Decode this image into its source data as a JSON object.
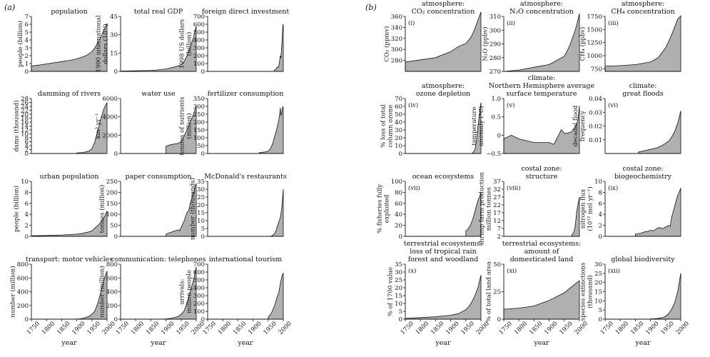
{
  "panel_labels": [
    "(a)",
    "(b)"
  ],
  "colors": {
    "fill": "#b0b0b0",
    "line": "#111111",
    "background": "#ffffff"
  },
  "chart_data": [
    {
      "type": "area",
      "title": [
        "population"
      ],
      "ylabel": [
        "people (billion)"
      ],
      "ylim": [
        0,
        7
      ],
      "yticks": [
        "0",
        "1",
        "2",
        "3",
        "4",
        "5",
        "6",
        "7"
      ],
      "xlim": [
        1750,
        2000
      ],
      "x": [
        1750,
        1775,
        1800,
        1825,
        1850,
        1875,
        1900,
        1915,
        1930,
        1940,
        1950,
        1960,
        1970,
        1980,
        1990,
        2000
      ],
      "y": [
        0.7,
        0.8,
        0.95,
        1.1,
        1.25,
        1.4,
        1.6,
        1.8,
        2.0,
        2.25,
        2.5,
        3.0,
        3.7,
        4.4,
        5.3,
        6.1
      ]
    },
    {
      "type": "area",
      "title": [
        "total real GDP"
      ],
      "ylabel": [
        "1990 international",
        "dollars (10¹²)"
      ],
      "ylim": [
        0,
        45
      ],
      "yticks": [
        "0",
        "15",
        "30",
        "45"
      ],
      "xlim": [
        1750,
        2000
      ],
      "x": [
        1750,
        1800,
        1850,
        1870,
        1900,
        1913,
        1929,
        1950,
        1960,
        1970,
        1980,
        1990,
        2000
      ],
      "y": [
        0.3,
        0.5,
        0.8,
        1.1,
        2.0,
        2.7,
        3.7,
        5.3,
        8,
        13,
        20,
        27,
        37
      ]
    },
    {
      "type": "area",
      "title": [
        "foreign direct investment"
      ],
      "ylabel": [
        "1998 US dollars",
        "(billion)"
      ],
      "ylim": [
        0,
        700
      ],
      "yticks": [
        "0",
        "100",
        "200",
        "300",
        "400",
        "500",
        "600",
        "700"
      ],
      "xlim": [
        1750,
        2000
      ],
      "x": [
        1970,
        1975,
        1980,
        1983,
        1986,
        1990,
        1992,
        1995,
        1997,
        1999,
        2000
      ],
      "y": [
        15,
        25,
        55,
        50,
        80,
        200,
        170,
        330,
        460,
        600,
        580
      ]
    },
    {
      "type": "area",
      "title": [
        "damming of rivers"
      ],
      "ylabel": [
        "dams (thousand)"
      ],
      "ylim": [
        0,
        28
      ],
      "yticks": [
        "0",
        "2",
        "4",
        "6",
        "8",
        "10",
        "12",
        "14",
        "16",
        "18",
        "20",
        "22",
        "24",
        "26",
        "28"
      ],
      "xlim": [
        1750,
        2000
      ],
      "x": [
        1900,
        1920,
        1940,
        1950,
        1960,
        1970,
        1980,
        1990,
        2000
      ],
      "y": [
        0.3,
        0.5,
        1.2,
        2.5,
        6,
        12,
        18,
        23,
        26
      ]
    },
    {
      "type": "area",
      "title": [
        "water use"
      ],
      "ylabel": [
        "km³ yr⁻¹"
      ],
      "ylim": [
        0,
        6000
      ],
      "yticks": [
        "0",
        "2000",
        "4000",
        "6000"
      ],
      "xlim": [
        1750,
        2000
      ],
      "x": [
        1900,
        1920,
        1940,
        1950,
        1960,
        1970,
        1980,
        1990,
        2000
      ],
      "y": [
        800,
        1000,
        1100,
        1300,
        1900,
        2600,
        3400,
        4200,
        5200
      ]
    },
    {
      "type": "area",
      "title": [
        "fertilizer consumption"
      ],
      "ylabel": [
        "tonnes of nutrients",
        "(million)"
      ],
      "ylim": [
        0,
        350
      ],
      "yticks": [
        "0",
        "50",
        "100",
        "150",
        "200",
        "250",
        "300",
        "350"
      ],
      "xlim": [
        1750,
        2000
      ],
      "x": [
        1920,
        1940,
        1950,
        1955,
        1960,
        1965,
        1970,
        1975,
        1980,
        1985,
        1988,
        1990,
        1993,
        1995,
        1998,
        2000
      ],
      "y": [
        5,
        10,
        15,
        25,
        40,
        65,
        100,
        130,
        170,
        210,
        250,
        290,
        240,
        260,
        300,
        290
      ]
    },
    {
      "type": "area",
      "title": [
        "urban population"
      ],
      "ylabel": [
        "people (billion)"
      ],
      "ylim": [
        0,
        10
      ],
      "yticks": [
        "0",
        "2",
        "4",
        "6",
        "8",
        "10"
      ],
      "xlim": [
        1750,
        2000
      ],
      "x": [
        1750,
        1800,
        1850,
        1900,
        1920,
        1940,
        1950,
        1960,
        1970,
        1980,
        1990,
        2000
      ],
      "y": [
        0.1,
        0.15,
        0.25,
        0.4,
        0.55,
        0.8,
        1.0,
        1.5,
        2.0,
        2.6,
        3.4,
        4.6
      ]
    },
    {
      "type": "area",
      "title": [
        "paper consumption"
      ],
      "ylabel": [
        "tonnes (million)"
      ],
      "ylim": [
        0,
        250
      ],
      "yticks": [
        "0",
        "50",
        "100",
        "150",
        "200",
        "250"
      ],
      "xlim": [
        1750,
        2000
      ],
      "x": [
        1900,
        1920,
        1940,
        1945,
        1950,
        1960,
        1970,
        1975,
        1980,
        1985,
        1990,
        1993,
        1995,
        1998,
        2000
      ],
      "y": [
        10,
        20,
        30,
        25,
        40,
        70,
        110,
        115,
        150,
        170,
        200,
        195,
        220,
        235,
        240
      ]
    },
    {
      "type": "area",
      "title": [
        "McDonald's restaurants"
      ],
      "ylabel": [
        "number (thousands)"
      ],
      "ylim": [
        0,
        35
      ],
      "yticks": [
        "0",
        "5",
        "10",
        "15",
        "20",
        "25",
        "30",
        "35"
      ],
      "xlim": [
        1750,
        2000
      ],
      "x": [
        1955,
        1960,
        1965,
        1970,
        1975,
        1980,
        1985,
        1990,
        1995,
        2000
      ],
      "y": [
        0,
        0.2,
        0.7,
        1.5,
        3,
        6,
        9,
        12,
        18,
        30
      ]
    },
    {
      "type": "area",
      "title": [
        "transport: motor vehicles"
      ],
      "ylabel": [
        "number (million)"
      ],
      "ylim": [
        0,
        800
      ],
      "yticks": [
        "0",
        "200",
        "400",
        "600",
        "800"
      ],
      "xlim": [
        1750,
        2000
      ],
      "xticks": [
        "1750",
        "1800",
        "1850",
        "1900",
        "1950",
        "2000"
      ],
      "xlabel": "year",
      "x": [
        1750,
        1850,
        1900,
        1920,
        1940,
        1950,
        1960,
        1970,
        1980,
        1990,
        2000
      ],
      "y": [
        0,
        0,
        1,
        10,
        40,
        70,
        120,
        240,
        400,
        580,
        700
      ]
    },
    {
      "type": "area",
      "title": [
        "communication: telephones"
      ],
      "ylabel": [
        "number (million)"
      ],
      "ylim": [
        0,
        800
      ],
      "yticks": [
        "0",
        "200",
        "400",
        "600",
        "800"
      ],
      "xlim": [
        1750,
        2000
      ],
      "xticks": [
        "1750",
        "1800",
        "1850",
        "1900",
        "1950",
        "2000"
      ],
      "xlabel": "year",
      "x": [
        1880,
        1900,
        1920,
        1940,
        1950,
        1960,
        1970,
        1980,
        1990,
        2000
      ],
      "y": [
        0,
        3,
        15,
        40,
        70,
        120,
        240,
        400,
        550,
        760
      ]
    },
    {
      "type": "area",
      "title": [
        "international tourism"
      ],
      "ylabel": [
        "arrivals:",
        "million people"
      ],
      "ylim": [
        0,
        700
      ],
      "yticks": [
        "0",
        "100",
        "200",
        "300",
        "400",
        "500",
        "600",
        "700"
      ],
      "xlim": [
        1750,
        2000
      ],
      "xticks": [
        "1750",
        "1800",
        "1850",
        "1900",
        "1950",
        "2000"
      ],
      "xlabel": "year",
      "x": [
        1950,
        1960,
        1970,
        1975,
        1980,
        1985,
        1990,
        1995,
        2000
      ],
      "y": [
        25,
        70,
        160,
        220,
        290,
        330,
        450,
        540,
        590
      ]
    },
    {
      "type": "area",
      "title": [
        "atmosphere:",
        "CO₂ concentration"
      ],
      "tag": "(i)",
      "ylabel": [
        "CO₂ (ppmv)"
      ],
      "ylim": [
        260,
        360
      ],
      "yticks": [
        "280",
        "300",
        "320",
        "340",
        "360"
      ],
      "xlim": [
        1750,
        2000
      ],
      "x": [
        1750,
        1800,
        1850,
        1900,
        1925,
        1950,
        1960,
        1970,
        1980,
        1990,
        2000
      ],
      "y": [
        277,
        281,
        285,
        296,
        305,
        311,
        317,
        325,
        338,
        353,
        368
      ]
    },
    {
      "type": "area",
      "title": [
        "atmosphere:",
        "N₂O concentration"
      ],
      "tag": "(ii)",
      "ylabel": [
        "N₂O (ppbv)"
      ],
      "ylim": [
        270,
        310
      ],
      "yticks": [
        "270",
        "280",
        "290",
        "300",
        "310"
      ],
      "xlim": [
        1750,
        2000
      ],
      "x": [
        1750,
        1800,
        1850,
        1900,
        1925,
        1950,
        1960,
        1970,
        1980,
        1990,
        2000
      ],
      "y": [
        270,
        271,
        273,
        275,
        278,
        281,
        285,
        290,
        296,
        303,
        312
      ]
    },
    {
      "type": "area",
      "title": [
        "atmosphere:",
        "CH₄ concentration"
      ],
      "tag": "(iii)",
      "ylabel": [
        "CH₄ (ppbv)"
      ],
      "ylim": [
        700,
        1750
      ],
      "yticks": [
        "750",
        "1000",
        "1250",
        "1500",
        "1750"
      ],
      "xlim": [
        1750,
        2000
      ],
      "x": [
        1750,
        1800,
        1850,
        1900,
        1925,
        1950,
        1960,
        1970,
        1980,
        1990,
        2000
      ],
      "y": [
        800,
        810,
        830,
        880,
        960,
        1150,
        1270,
        1400,
        1550,
        1700,
        1760
      ]
    },
    {
      "type": "area",
      "title": [
        "atmosphere:",
        "ozone depletion"
      ],
      "tag": "(iv)",
      "ylabel": [
        "% loss of total",
        "column ozone"
      ],
      "ylim": [
        0,
        70
      ],
      "yticks": [
        "0",
        "10",
        "20",
        "30",
        "40",
        "50",
        "60",
        "70"
      ],
      "xlim": [
        1750,
        2000
      ],
      "x": [
        1960,
        1970,
        1975,
        1980,
        1985,
        1990,
        1995,
        2000
      ],
      "y": [
        0,
        0,
        2,
        5,
        15,
        35,
        50,
        65
      ]
    },
    {
      "type": "line",
      "title": [
        "climate:",
        "Northern Hemisphere average",
        "surface temperature"
      ],
      "tag": "(v)",
      "ylabel": [
        "temperature",
        "anomaly (°C)"
      ],
      "ylim": [
        -0.5,
        1.0
      ],
      "yticks": [
        "−0.5",
        "0",
        "0.5",
        "1.0"
      ],
      "xlim": [
        1750,
        2000
      ],
      "x": [
        1750,
        1775,
        1800,
        1825,
        1850,
        1875,
        1900,
        1915,
        1925,
        1940,
        1950,
        1960,
        1975,
        1985,
        1990,
        1995,
        2000
      ],
      "y": [
        -0.1,
        0.0,
        -0.1,
        -0.15,
        -0.2,
        -0.2,
        -0.2,
        -0.25,
        -0.1,
        0.15,
        0.05,
        0.05,
        0.1,
        0.2,
        0.3,
        0.4,
        0.8
      ]
    },
    {
      "type": "area",
      "title": [
        "climate:",
        "great floods"
      ],
      "tag": "(vi)",
      "ylabel": [
        "decadal flood",
        "frequency"
      ],
      "ylim": [
        0,
        0.04
      ],
      "yticks": [
        "0.01",
        "0.02",
        "0.03",
        "0.04"
      ],
      "xlim": [
        1750,
        2000
      ],
      "x": [
        1860,
        1900,
        1920,
        1940,
        1960,
        1970,
        1980,
        1990,
        2000
      ],
      "y": [
        0.001,
        0.003,
        0.004,
        0.006,
        0.009,
        0.012,
        0.016,
        0.022,
        0.031
      ]
    },
    {
      "type": "area",
      "title": [
        "ocean ecosystems"
      ],
      "tag": "(vii)",
      "ylabel": [
        "% fisheries fully",
        "exploited"
      ],
      "ylim": [
        0,
        100
      ],
      "yticks": [
        "0",
        "20",
        "40",
        "60",
        "80",
        "100"
      ],
      "xlim": [
        1750,
        2000
      ],
      "x": [
        1950,
        1955,
        1960,
        1965,
        1970,
        1975,
        1980,
        1985,
        1990,
        1995,
        2000
      ],
      "y": [
        10,
        12,
        16,
        20,
        27,
        35,
        45,
        55,
        65,
        72,
        80
      ]
    },
    {
      "type": "area",
      "title": [
        "costal zone:",
        "structure"
      ],
      "tag": "(viii)",
      "ylabel": [
        "shrimp farm production",
        "million tonnes"
      ],
      "ylim": [
        2,
        37
      ],
      "yticks": [
        "2",
        "7",
        "12",
        "17",
        "22",
        "27",
        "32",
        "37"
      ],
      "xlim": [
        1750,
        2000
      ],
      "x": [
        1975,
        1980,
        1985,
        1988,
        1990,
        1993,
        1995,
        1998,
        2000
      ],
      "y": [
        3,
        4,
        7,
        12,
        16,
        20,
        22,
        25,
        27
      ]
    },
    {
      "type": "area",
      "title": [
        "costal zone:",
        "biogeochemistry"
      ],
      "tag": "(ix)",
      "ylabel": [
        "nitrogen flux",
        "(10¹² mol yr⁻¹)"
      ],
      "ylim": [
        0,
        10
      ],
      "yticks": [
        "0",
        "2",
        "4",
        "6",
        "8",
        "10"
      ],
      "xlim": [
        1750,
        2000
      ],
      "x": [
        1850,
        1870,
        1880,
        1890,
        1900,
        1910,
        1920,
        1930,
        1940,
        1950,
        1960,
        1965,
        1970,
        1975,
        1980,
        1985,
        1990,
        1995,
        2000
      ],
      "y": [
        0.4,
        0.6,
        0.8,
        0.9,
        1.1,
        1.0,
        1.4,
        1.6,
        1.4,
        1.7,
        2.0,
        1.8,
        3.5,
        4.5,
        5.5,
        6.5,
        7.5,
        8.0,
        8.8
      ]
    },
    {
      "type": "area",
      "title": [
        "terrestrial ecosystems:",
        "loss of tropical rain",
        "forest and woodland"
      ],
      "tag": "(x)",
      "ylabel": [
        "% of 1700 value"
      ],
      "ylim": [
        0,
        35
      ],
      "yticks": [
        "0",
        "5",
        "10",
        "15",
        "20",
        "25",
        "30",
        "35"
      ],
      "xlim": [
        1750,
        2000
      ],
      "xticks": [
        "1750",
        "1800",
        "1850",
        "1900",
        "1950",
        "2000"
      ],
      "xlabel": "year",
      "x": [
        1750,
        1800,
        1850,
        1900,
        1925,
        1950,
        1960,
        1970,
        1980,
        1990,
        2000
      ],
      "y": [
        0.5,
        1,
        1.5,
        2.5,
        3.5,
        6,
        8,
        11,
        15,
        20,
        28
      ]
    },
    {
      "type": "area",
      "title": [
        "terrestrial ecosystems:",
        "amount of",
        "domesticated land"
      ],
      "tag": "(xi)",
      "ylabel": [
        "% of total land area"
      ],
      "ylim": [
        0,
        50
      ],
      "yticks": [
        "0",
        "25",
        "50"
      ],
      "xlim": [
        1750,
        2000
      ],
      "xticks": [
        "1750",
        "1800",
        "1850",
        "1900",
        "1950",
        "2000"
      ],
      "xlabel": "year",
      "x": [
        1750,
        1800,
        1850,
        1900,
        1950,
        2000
      ],
      "y": [
        9,
        10,
        12,
        17,
        24,
        35
      ]
    },
    {
      "type": "area",
      "title": [
        "global biodiversity"
      ],
      "tag": "(xii)",
      "ylabel": [
        "species extinctions",
        "(thousand)"
      ],
      "ylim": [
        0,
        30
      ],
      "yticks": [
        "0",
        "5",
        "10",
        "15",
        "20",
        "25",
        "30"
      ],
      "xlim": [
        1750,
        2000
      ],
      "xticks": [
        "1750",
        "1800",
        "1850",
        "1900",
        "1950",
        "2000"
      ],
      "xlabel": "year",
      "x": [
        1900,
        1920,
        1940,
        1950,
        1960,
        1970,
        1980,
        1990,
        2000
      ],
      "y": [
        0.1,
        0.3,
        0.8,
        1.5,
        3,
        5.5,
        9,
        15,
        25
      ]
    }
  ]
}
